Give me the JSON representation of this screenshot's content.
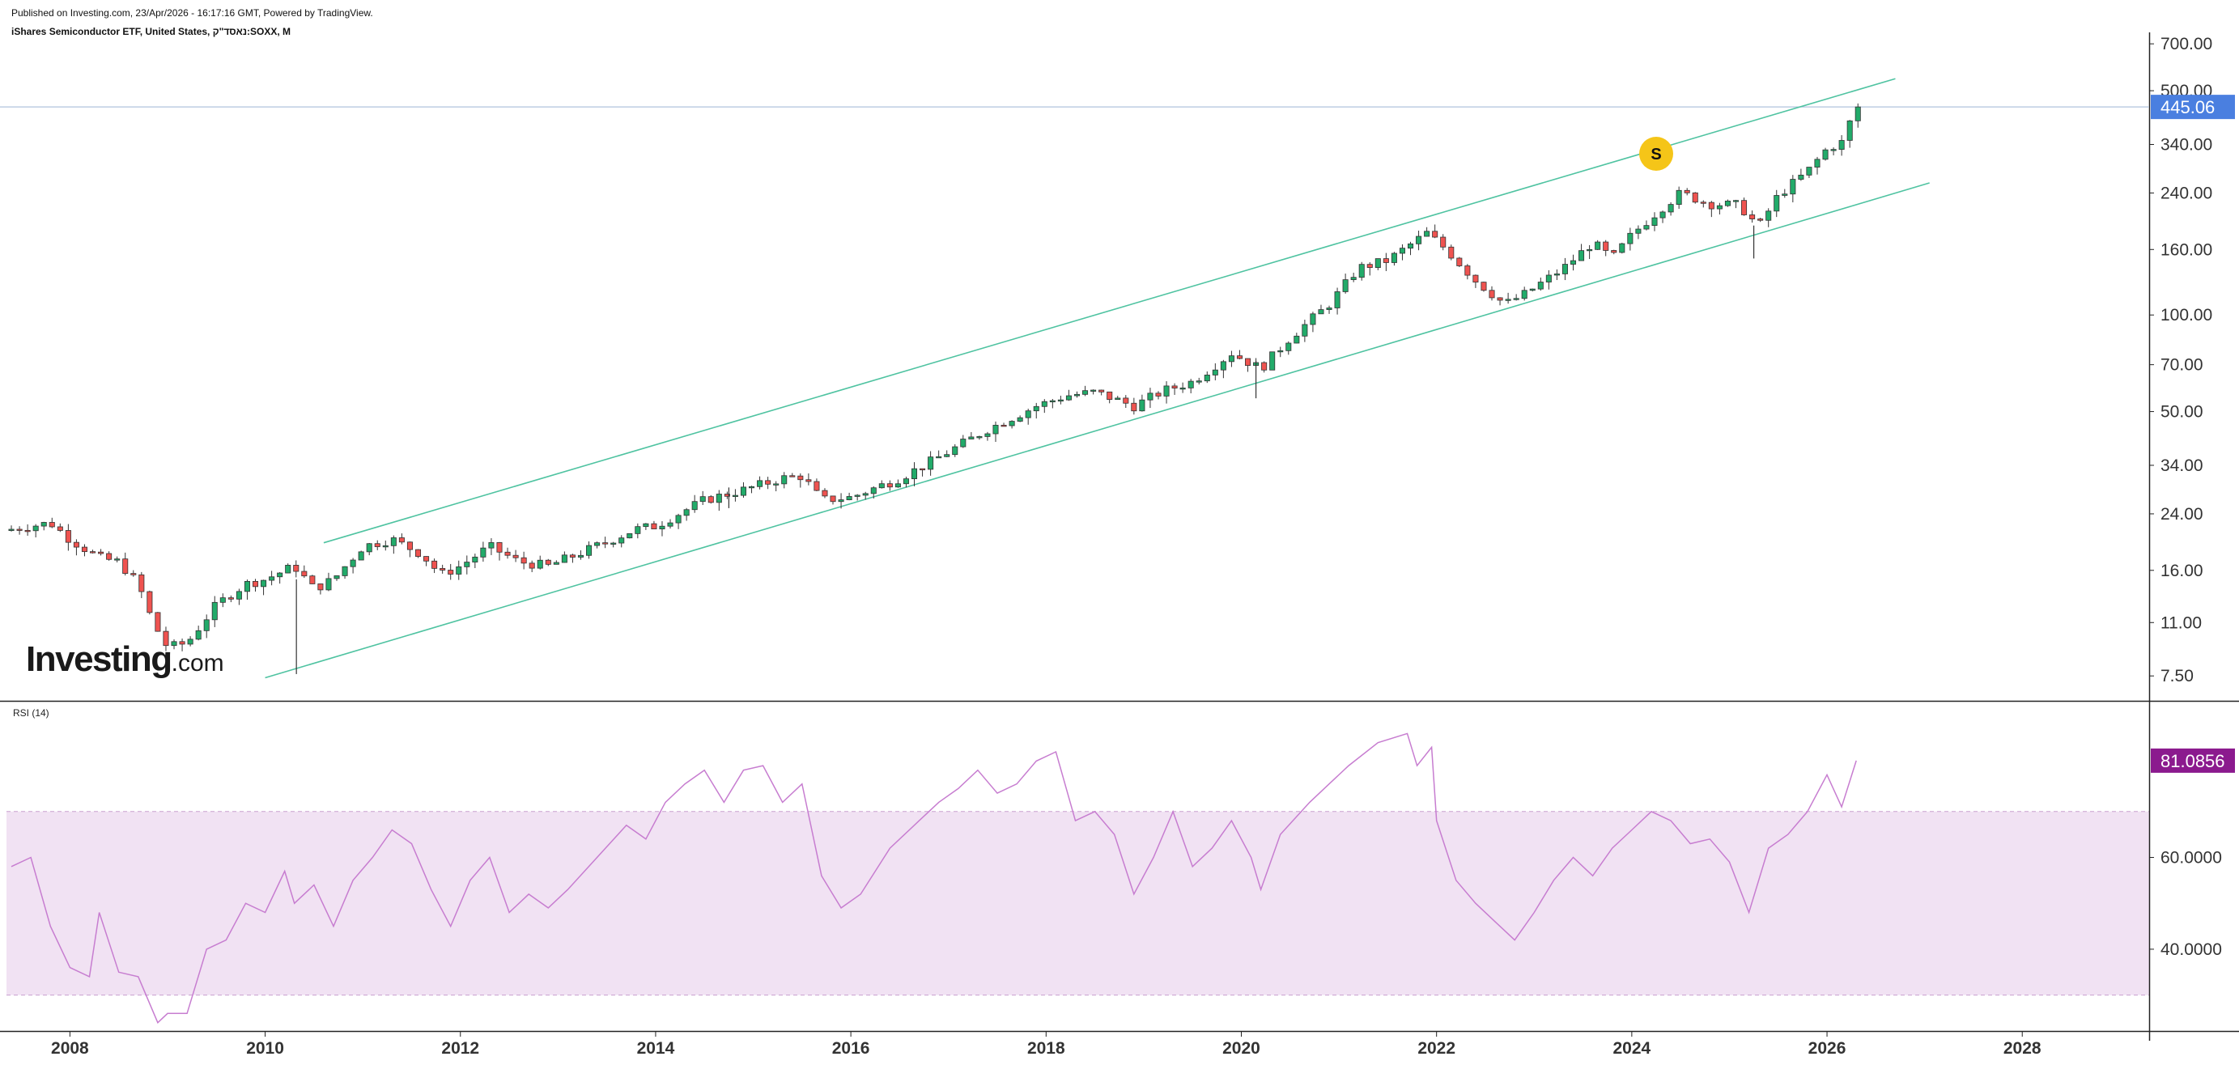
{
  "header": {
    "published": "Published on Investing.com, 23/Apr/2026 - 16:17:16 GMT, Powered by TradingView.",
    "instrument": "iShares Semiconductor ETF, United States, נאסד\"ק:SOXX, M"
  },
  "logo": {
    "brand": "Investing",
    "domain": ".com"
  },
  "colors": {
    "up": "#26a69a",
    "up_body": "#22ab6a",
    "down": "#ef5350",
    "wick": "#333333",
    "channel": "#4fc3a1",
    "price_line": "#b0c4de",
    "price_badge": "#4a7fe0",
    "rsi_line": "#c77dd0",
    "rsi_band": "#f1e2f3",
    "rsi_badge": "#8b1a8e",
    "marker": "#f5c518"
  },
  "chart_data": [
    {
      "type": "candlestick",
      "title": "iShares Semiconductor ETF, United States, נאסד\"ק:SOXX, M",
      "scale": "log",
      "ylim": [
        6.2,
        760
      ],
      "xlim": [
        2007.35,
        2029.3
      ],
      "y_ticks": [
        "700.00",
        "500.00",
        "340.00",
        "240.00",
        "160.00",
        "100.00",
        "70.00",
        "50.00",
        "34.00",
        "24.00",
        "16.00",
        "11.00",
        "7.50"
      ],
      "last_price": "445.06",
      "marker": {
        "label": "S",
        "date": 2024.25,
        "price": 318
      },
      "channel": {
        "upper": [
          [
            2010.6,
            19.5
          ],
          [
            2026.7,
            545
          ]
        ],
        "lower": [
          [
            2010.0,
            7.4
          ],
          [
            2027.05,
            258
          ]
        ]
      },
      "monthly_anchors": [
        [
          2007.4,
          21.5
        ],
        [
          2007.8,
          22.5
        ],
        [
          2008.0,
          20.0
        ],
        [
          2008.3,
          17.5
        ],
        [
          2008.5,
          17.0
        ],
        [
          2008.7,
          14.5
        ],
        [
          2008.85,
          11.0
        ],
        [
          2009.0,
          9.2
        ],
        [
          2009.2,
          9.5
        ],
        [
          2009.5,
          12.5
        ],
        [
          2009.8,
          14.5
        ],
        [
          2010.0,
          15.0
        ],
        [
          2010.3,
          16.5
        ],
        [
          2010.5,
          14.0
        ],
        [
          2010.7,
          15.0
        ],
        [
          2011.0,
          19.0
        ],
        [
          2011.3,
          20.0
        ],
        [
          2011.6,
          18.0
        ],
        [
          2011.8,
          15.5
        ],
        [
          2012.0,
          16.5
        ],
        [
          2012.3,
          19.0
        ],
        [
          2012.6,
          17.0
        ],
        [
          2012.9,
          16.5
        ],
        [
          2013.3,
          18.5
        ],
        [
          2013.8,
          21.5
        ],
        [
          2014.0,
          22.0
        ],
        [
          2014.5,
          26.5
        ],
        [
          2014.9,
          28.5
        ],
        [
          2015.3,
          31.0
        ],
        [
          2015.5,
          31.5
        ],
        [
          2015.7,
          26.5
        ],
        [
          2016.0,
          27.0
        ],
        [
          2016.5,
          31.0
        ],
        [
          2016.9,
          36.0
        ],
        [
          2017.4,
          44.0
        ],
        [
          2017.9,
          52.0
        ],
        [
          2018.2,
          56.0
        ],
        [
          2018.5,
          57.5
        ],
        [
          2018.9,
          52.0
        ],
        [
          2019.2,
          58.0
        ],
        [
          2019.5,
          62.0
        ],
        [
          2019.9,
          76.0
        ],
        [
          2020.2,
          68.0
        ],
        [
          2020.5,
          85.0
        ],
        [
          2020.9,
          108.0
        ],
        [
          2021.2,
          140.0
        ],
        [
          2021.5,
          148.0
        ],
        [
          2021.9,
          180.0
        ],
        [
          2022.1,
          160.0
        ],
        [
          2022.4,
          128.0
        ],
        [
          2022.7,
          108.0
        ],
        [
          2022.9,
          116.0
        ],
        [
          2023.3,
          140.0
        ],
        [
          2023.6,
          168.0
        ],
        [
          2023.8,
          150.0
        ],
        [
          2024.0,
          178.0
        ],
        [
          2024.3,
          215.0
        ],
        [
          2024.5,
          240.0
        ],
        [
          2024.8,
          222.0
        ],
        [
          2025.1,
          220.0
        ],
        [
          2025.3,
          188.0
        ],
        [
          2025.5,
          236.0
        ],
        [
          2025.8,
          280.0
        ],
        [
          2026.0,
          330.0
        ],
        [
          2026.15,
          345.0
        ],
        [
          2026.3,
          445.06
        ]
      ]
    },
    {
      "type": "line",
      "title": "RSI (14)",
      "ylim": [
        22,
        92
      ],
      "y_ticks": [
        "60.0000",
        "40.0000"
      ],
      "band": [
        30,
        70
      ],
      "last_value": "81.0856",
      "series": [
        {
          "name": "RSI (14)",
          "points": [
            [
              2007.4,
              58
            ],
            [
              2007.6,
              60
            ],
            [
              2007.8,
              45
            ],
            [
              2008.0,
              36
            ],
            [
              2008.2,
              34
            ],
            [
              2008.3,
              48
            ],
            [
              2008.5,
              35
            ],
            [
              2008.7,
              34
            ],
            [
              2008.9,
              24
            ],
            [
              2009.0,
              26
            ],
            [
              2009.2,
              26
            ],
            [
              2009.4,
              40
            ],
            [
              2009.6,
              42
            ],
            [
              2009.8,
              50
            ],
            [
              2010.0,
              48
            ],
            [
              2010.2,
              57
            ],
            [
              2010.3,
              50
            ],
            [
              2010.5,
              54
            ],
            [
              2010.7,
              45
            ],
            [
              2010.9,
              55
            ],
            [
              2011.1,
              60
            ],
            [
              2011.3,
              66
            ],
            [
              2011.5,
              63
            ],
            [
              2011.7,
              53
            ],
            [
              2011.9,
              45
            ],
            [
              2012.1,
              55
            ],
            [
              2012.3,
              60
            ],
            [
              2012.5,
              48
            ],
            [
              2012.7,
              52
            ],
            [
              2012.9,
              49
            ],
            [
              2013.1,
              53
            ],
            [
              2013.4,
              60
            ],
            [
              2013.7,
              67
            ],
            [
              2013.9,
              64
            ],
            [
              2014.1,
              72
            ],
            [
              2014.3,
              76
            ],
            [
              2014.5,
              79
            ],
            [
              2014.7,
              72
            ],
            [
              2014.9,
              79
            ],
            [
              2015.1,
              80
            ],
            [
              2015.3,
              72
            ],
            [
              2015.5,
              76
            ],
            [
              2015.7,
              56
            ],
            [
              2015.9,
              49
            ],
            [
              2016.1,
              52
            ],
            [
              2016.4,
              62
            ],
            [
              2016.7,
              68
            ],
            [
              2016.9,
              72
            ],
            [
              2017.1,
              75
            ],
            [
              2017.3,
              79
            ],
            [
              2017.5,
              74
            ],
            [
              2017.7,
              76
            ],
            [
              2017.9,
              81
            ],
            [
              2018.1,
              83
            ],
            [
              2018.3,
              68
            ],
            [
              2018.5,
              70
            ],
            [
              2018.7,
              65
            ],
            [
              2018.9,
              52
            ],
            [
              2019.1,
              60
            ],
            [
              2019.3,
              70
            ],
            [
              2019.5,
              58
            ],
            [
              2019.7,
              62
            ],
            [
              2019.9,
              68
            ],
            [
              2020.1,
              60
            ],
            [
              2020.2,
              53
            ],
            [
              2020.4,
              65
            ],
            [
              2020.7,
              72
            ],
            [
              2020.9,
              76
            ],
            [
              2021.1,
              80
            ],
            [
              2021.4,
              85
            ],
            [
              2021.7,
              87
            ],
            [
              2021.8,
              80
            ],
            [
              2021.95,
              84
            ],
            [
              2022.0,
              68
            ],
            [
              2022.2,
              55
            ],
            [
              2022.4,
              50
            ],
            [
              2022.6,
              46
            ],
            [
              2022.8,
              42
            ],
            [
              2023.0,
              48
            ],
            [
              2023.2,
              55
            ],
            [
              2023.4,
              60
            ],
            [
              2023.6,
              56
            ],
            [
              2023.8,
              62
            ],
            [
              2024.0,
              66
            ],
            [
              2024.2,
              70
            ],
            [
              2024.4,
              68
            ],
            [
              2024.6,
              63
            ],
            [
              2024.8,
              64
            ],
            [
              2025.0,
              59
            ],
            [
              2025.2,
              48
            ],
            [
              2025.4,
              62
            ],
            [
              2025.6,
              65
            ],
            [
              2025.8,
              70
            ],
            [
              2026.0,
              78
            ],
            [
              2026.15,
              71
            ],
            [
              2026.3,
              81.0856
            ]
          ]
        }
      ]
    }
  ],
  "x_axis": {
    "ticks": [
      "2008",
      "2010",
      "2012",
      "2014",
      "2016",
      "2018",
      "2020",
      "2022",
      "2024",
      "2026",
      "2028"
    ]
  }
}
